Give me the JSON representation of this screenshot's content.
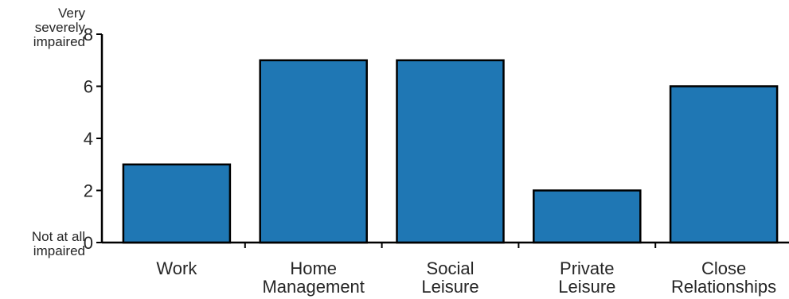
{
  "chart_data": {
    "type": "bar",
    "categories": [
      [
        "Work"
      ],
      [
        "Home",
        "Management"
      ],
      [
        "Social",
        "Leisure"
      ],
      [
        "Private",
        "Leisure"
      ],
      [
        "Close",
        "Relationships"
      ]
    ],
    "values": [
      3,
      7,
      7,
      2,
      6
    ],
    "ylim": [
      0,
      8
    ],
    "yticks": [
      0,
      2,
      4,
      6,
      8
    ],
    "y_top_label": [
      "Very",
      "severely",
      "impaired"
    ],
    "y_bottom_label": [
      "Not at all",
      "impaired"
    ],
    "bar_color": "#1f77b4",
    "bar_edge_color": "#000000",
    "grid": false
  }
}
